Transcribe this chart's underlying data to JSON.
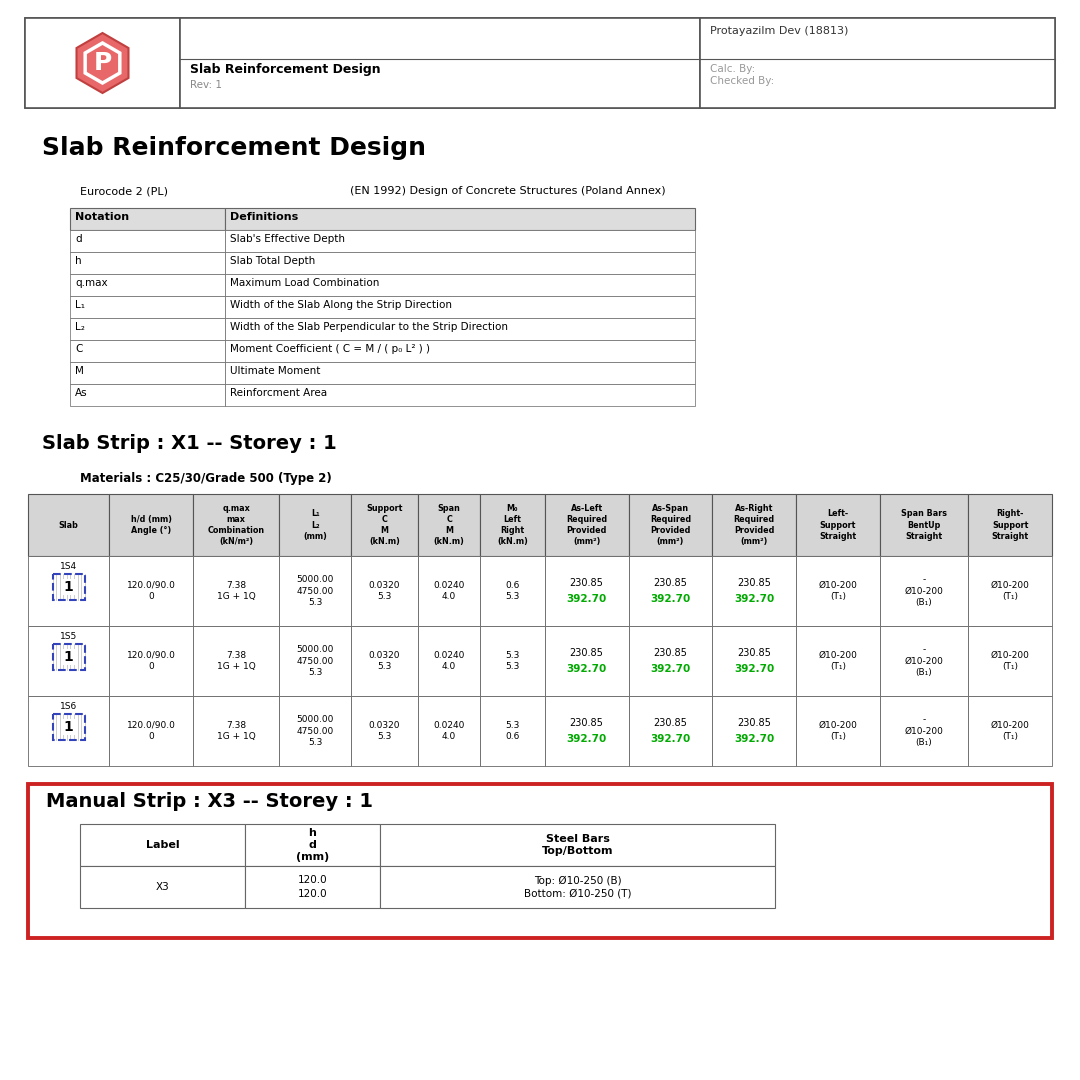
{
  "page_bg": "#ffffff",
  "header": {
    "company": "Protayazilm Dev (18813)",
    "title": "Slab Reinforcement Design",
    "rev": "Rev: 1",
    "calc_by": "Calc. By:",
    "checked_by": "Checked By:"
  },
  "main_title": "Slab Reinforcement Design",
  "code_left": "Eurocode 2 (PL)",
  "code_right": "(EN 1992) Design of Concrete Structures (Poland Annex)",
  "notation_headers": [
    "Notation",
    "Definitions"
  ],
  "notation_rows": [
    [
      "d",
      "Slab's Effective Depth"
    ],
    [
      "h",
      "Slab Total Depth"
    ],
    [
      "q.max",
      "Maximum Load Combination"
    ],
    [
      "L₁",
      "Width of the Slab Along the Strip Direction"
    ],
    [
      "L₂",
      "Width of the Slab Perpendicular to the Strip Direction"
    ],
    [
      "C",
      "Moment Coefficient ( C = M / ( p₀ L² ) )"
    ],
    [
      "M",
      "Ultimate Moment"
    ],
    [
      "As",
      "Reinforcment Area"
    ]
  ],
  "strip_title": "Slab Strip : X1 -- Storey : 1",
  "materials": "Materials : C25/30/Grade 500 (Type 2)",
  "main_table_headers": [
    "Slab",
    "h/d (mm)\nAngle (°)",
    "q.max\nmax\nCombination\n(kN/m²)",
    "L₁\nL₂\n(mm)",
    "Support\nC\nM\n(kN.m)",
    "Span\nC\nM\n(kN.m)",
    "M₀\nLeft\nRight\n(kN.m)",
    "As-Left\nRequired\nProvided\n(mm²)",
    "As-Span\nRequired\nProvided\n(mm²)",
    "As-Right\nRequired\nProvided\n(mm²)",
    "Left-\nSupport\nStraight",
    "Span Bars\nBentUp\nStraight",
    "Right-\nSupport\nStraight"
  ],
  "main_table_rows": [
    {
      "slab_id": "1S4",
      "slab_num": "1",
      "hd": "120.0/90.0\n0",
      "qmax": "7.38\n1G + 1Q",
      "L": "5000.00\n4750.00\n5.3",
      "sup_c": "0.0320\n5.3",
      "span_c": "0.0240\n4.0",
      "m0": "0.6\n5.3",
      "as_left": "230.85\n392.70",
      "as_span": "230.85\n392.70",
      "as_right": "230.85\n392.70",
      "left_sup": "Ø10-200\n(T₁)",
      "span_bars": "-\nØ10-200\n(B₁)",
      "right_sup": "Ø10-200\n(T₁)"
    },
    {
      "slab_id": "1S5",
      "slab_num": "1",
      "hd": "120.0/90.0\n0",
      "qmax": "7.38\n1G + 1Q",
      "L": "5000.00\n4750.00\n5.3",
      "sup_c": "0.0320\n5.3",
      "span_c": "0.0240\n4.0",
      "m0": "5.3\n5.3",
      "as_left": "230.85\n392.70",
      "as_span": "230.85\n392.70",
      "as_right": "230.85\n392.70",
      "left_sup": "Ø10-200\n(T₁)",
      "span_bars": "-\nØ10-200\n(B₁)",
      "right_sup": "Ø10-200\n(T₁)"
    },
    {
      "slab_id": "1S6",
      "slab_num": "1",
      "hd": "120.0/90.0\n0",
      "qmax": "7.38\n1G + 1Q",
      "L": "5000.00\n4750.00\n5.3",
      "sup_c": "0.0320\n5.3",
      "span_c": "0.0240\n4.0",
      "m0": "5.3\n0.6",
      "as_left": "230.85\n392.70",
      "as_span": "230.85\n392.70",
      "as_right": "230.85\n392.70",
      "left_sup": "Ø10-200\n(T₁)",
      "span_bars": "-\nØ10-200\n(B₁)",
      "right_sup": "Ø10-200\n(T₁)"
    }
  ],
  "manual_strip_title": "Manual Strip : X3 -- Storey : 1",
  "manual_table_headers": [
    "Label",
    "h\nd\n(mm)",
    "Steel Bars\nTop/Bottom"
  ],
  "manual_table_rows": [
    {
      "label": "X3",
      "hd": "120.0\n120.0",
      "steel": "Top: Ø10-250 (B)\nBottom: Ø10-250 (T)"
    }
  ],
  "green_color": "#00aa00",
  "red_border": "#cc2222",
  "gray_text": "#888888",
  "col_widths_raw": [
    68,
    70,
    72,
    60,
    56,
    52,
    54,
    70,
    70,
    70,
    70,
    74,
    70
  ]
}
